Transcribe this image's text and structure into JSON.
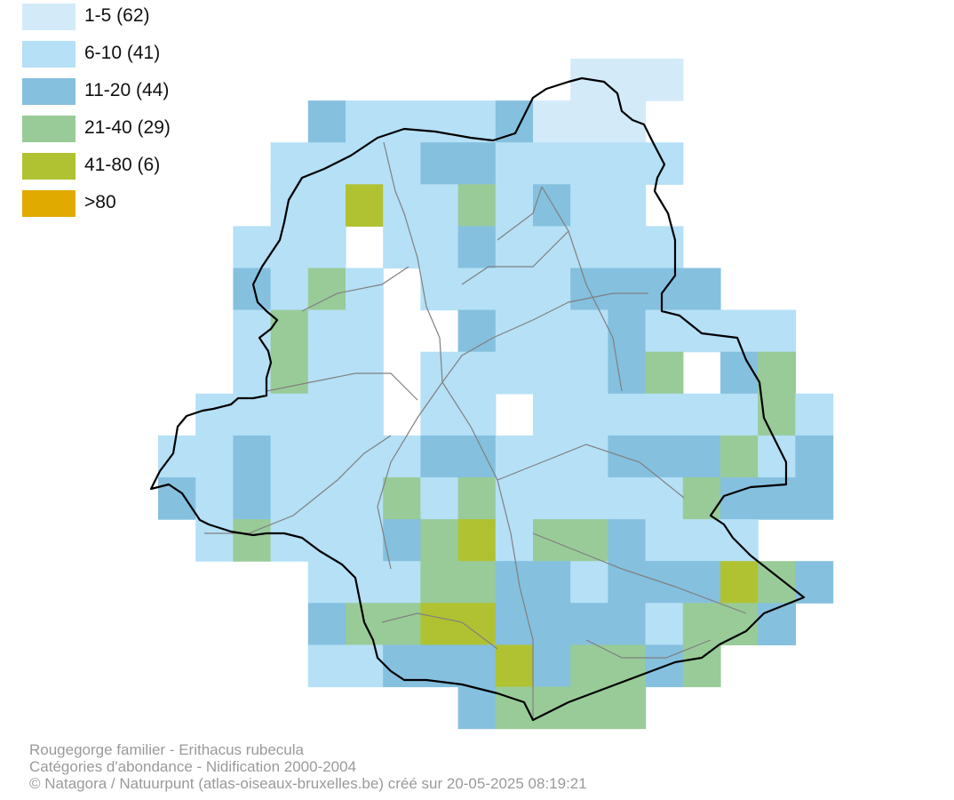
{
  "legend": {
    "items": [
      {
        "label": "1-5 (62)",
        "color": "#d3eaf9"
      },
      {
        "label": "6-10 (41)",
        "color": "#b5e0f6"
      },
      {
        "label": "11-20 (44)",
        "color": "#85c0df"
      },
      {
        "label": "21-40 (29)",
        "color": "#99cb98"
      },
      {
        "label": "41-80 (6)",
        "color": "#b0c232"
      },
      {
        "label": ">80",
        "color": "#e0aa00"
      }
    ]
  },
  "caption": {
    "line1": "Rougegorge familier - Erithacus rubecula",
    "line2": "Catégories d'abondance - Nidification 2000-2004",
    "line3": "© Natagora / Natuurpunt (atlas-oiseaux-bruxelles.be) créé sur 20-05-2025 08:19:21"
  },
  "map": {
    "grid_rows": [
      "...........PPP....",
      "....MLLLLMPPP.....",
      "...LLLLMMLLLLL....",
      "...LLSLLGLMLL.....",
      "..LLL.LLMLLLLL....",
      "..MLGL.LLLLMMMM...",
      "..LGLL..MLLLMLLLL.",
      "..LGLL.LLLLLMG.MG.",
      ".LLLLL.LL.LLLLLLGL",
      "LLMLLLLMMLLLMMMGLM",
      "MLMLLLGLGLLLLLGMMM",
      ".LGLLLMGSLGGMLLL..",
      "....LLLGGMMLMMMSGM",
      "....MGGSSMMMMLGGM.",
      "....LLMMMSMGGMG...",
      "........MGGGG....."
    ]
  }
}
